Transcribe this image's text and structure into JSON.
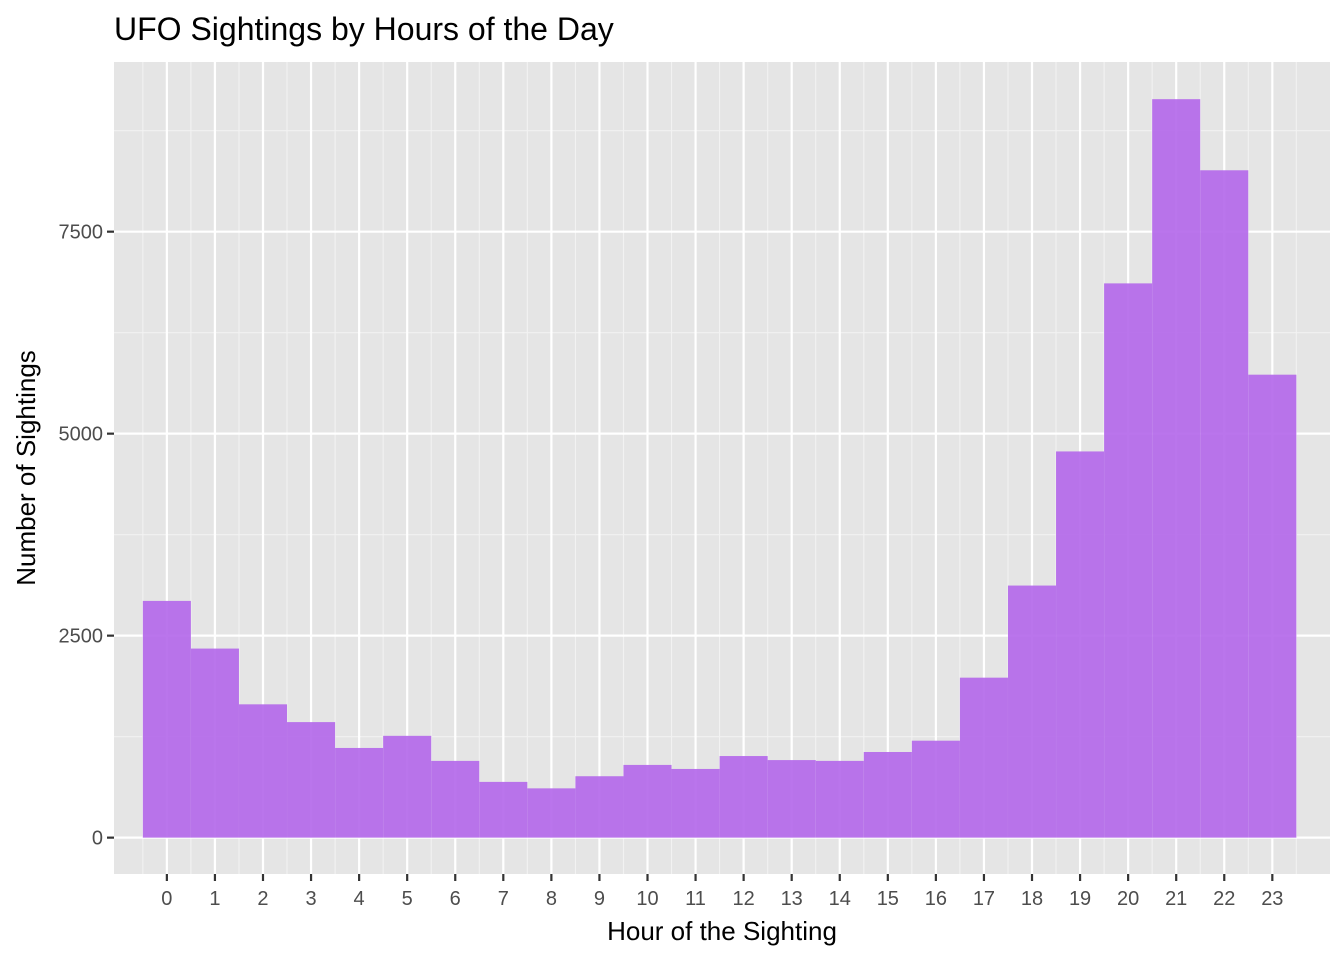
{
  "chart_data": {
    "type": "bar",
    "title": "UFO Sightings by Hours of the Day",
    "xlabel": "Hour of the Sighting",
    "ylabel": "Number of Sightings",
    "categories": [
      "0",
      "1",
      "2",
      "3",
      "4",
      "5",
      "6",
      "7",
      "8",
      "9",
      "10",
      "11",
      "12",
      "13",
      "14",
      "15",
      "16",
      "17",
      "18",
      "19",
      "20",
      "21",
      "22",
      "23"
    ],
    "values": [
      2930,
      2340,
      1650,
      1430,
      1110,
      1260,
      950,
      690,
      610,
      760,
      900,
      850,
      1010,
      960,
      950,
      1060,
      1200,
      1980,
      3120,
      4780,
      6860,
      9140,
      8260,
      5730
    ],
    "yticks": [
      0,
      2500,
      5000,
      7500
    ],
    "ytick_labels": [
      "0",
      "2500",
      "5000",
      "7500"
    ],
    "ylim": [
      -450,
      9600
    ],
    "xlim": [
      -1.1,
      24.2
    ],
    "bar_color": "#b366ea",
    "panel_background": "#e5e5e5",
    "grid": true
  }
}
